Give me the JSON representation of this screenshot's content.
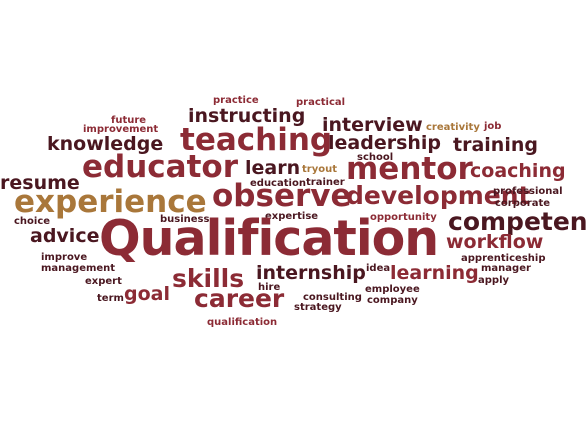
{
  "words": {
    "qualification_big": "Qualification",
    "teaching": "teaching",
    "educator": "educator",
    "experience": "experience",
    "observe": "observe",
    "mentor": "mentor",
    "career": "career",
    "skills": "skills",
    "development": "development",
    "interview": "interview",
    "instructing": "instructing",
    "leadership": "leadership",
    "knowledge": "knowledge",
    "training": "training",
    "coaching": "coaching",
    "competency": "competency",
    "workflow": "workflow",
    "advice": "advice",
    "resume": "resume",
    "learn": "learn",
    "internship": "internship",
    "learning": "learning",
    "goal": "goal",
    "practice": "practice",
    "practical": "practical",
    "future": "future",
    "improvement": "improvement",
    "creativity": "creativity",
    "job": "job",
    "school": "school",
    "tryout": "tryout",
    "education": "education",
    "trainer": "trainer",
    "professional": "professional",
    "corporate": "corporate",
    "choice": "choice",
    "business": "business",
    "expertise": "expertise",
    "opportunity": "opportunity",
    "improve": "improve",
    "management": "management",
    "expert": "expert",
    "term": "term",
    "apprenticeship": "apprenticeship",
    "manager": "manager",
    "apply": "apply",
    "idea": "idea",
    "employee": "employee",
    "company": "company",
    "hire": "hire",
    "consulting": "consulting",
    "strategy": "strategy",
    "qualification_small": "qualification"
  },
  "colors": {
    "dark_maroon": "#4a1720",
    "maroon": "#6e1d2a",
    "crimson": "#8c2b35",
    "tan": "#a9773a",
    "brown": "#7a4a30"
  }
}
